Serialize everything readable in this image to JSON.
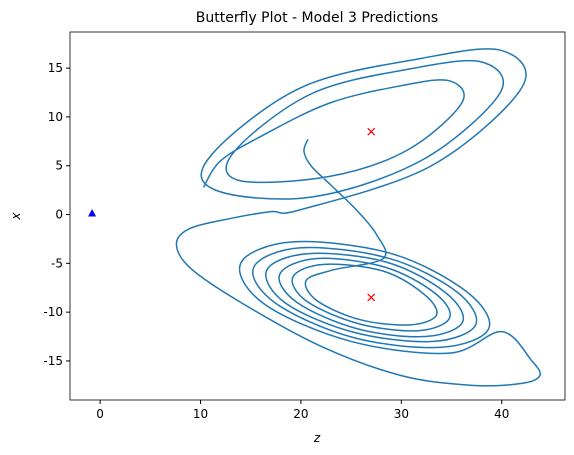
{
  "chart_data": {
    "type": "line",
    "title": "Butterfly Plot - Model 3 Predictions",
    "x_label": "z",
    "y_label": "x",
    "xlim": [
      -3.0,
      46.3
    ],
    "ylim": [
      -19.0,
      18.7
    ],
    "xticks": [
      0,
      10,
      20,
      30,
      40
    ],
    "yticks": [
      -15,
      -10,
      -5,
      0,
      5,
      10,
      15
    ],
    "series": [
      {
        "color": "#1f77b4",
        "mode": "line",
        "x": [
          20.7,
          20.3,
          21,
          23,
          25.5,
          27.5,
          28.2,
          23.1,
          20.5,
          21.7,
          26,
          30.9,
          33.5,
          32.3,
          28.2,
          22.3,
          19.2,
          20.6,
          25.8,
          31.7,
          34.8,
          33.4,
          28.4,
          21.6,
          17.9,
          19.6,
          25.6,
          32.4,
          36.1,
          34.4,
          28.6,
          20.8,
          16.6,
          18.5,
          25.4,
          33.2,
          37.4,
          35.5,
          28.8,
          20,
          15.3,
          17.5,
          25.2,
          34,
          38.7,
          36.5,
          29,
          19.2,
          14,
          16.4,
          25,
          34.8,
          40,
          43,
          43.8,
          42,
          37,
          30,
          22,
          14,
          9,
          7.6,
          9,
          13,
          17,
          20,
          33,
          42,
          40,
          32,
          20,
          11,
          11.5,
          21.1,
          32.1,
          39.8,
          38.1,
          31.3,
          21.1,
          13.4,
          13.8,
          22.8,
          30.6,
          36,
          34.8,
          30,
          22.8,
          16,
          12,
          10.3
        ],
        "values": [
          7.7,
          6.5,
          5,
          3,
          0.5,
          -2,
          -4.5,
          -5.7,
          -6.8,
          -8.9,
          -10.8,
          -11.3,
          -10.3,
          -8.2,
          -5.8,
          -5.1,
          -6.4,
          -8.9,
          -11.2,
          -11.9,
          -10.6,
          -8.1,
          -5.4,
          -4.5,
          -6.1,
          -9.0,
          -11.7,
          -12.5,
          -11.0,
          -8.0,
          -4.9,
          -4.0,
          -5.7,
          -9.1,
          -12.1,
          -13.0,
          -11.3,
          -7.9,
          -4.5,
          -3.4,
          -5.4,
          -9.1,
          -12.6,
          -13.6,
          -11.7,
          -7.9,
          -4,
          -2.8,
          -5,
          -9.2,
          -13,
          -14.2,
          -12,
          -15,
          -16.5,
          -17.3,
          -17.5,
          -16.5,
          -13.5,
          -9,
          -5.5,
          -3,
          -1.4,
          -0.4,
          0.3,
          0.5,
          5,
          13,
          16.8,
          16,
          13,
          6,
          2.5,
          1.8,
          5.6,
          12.4,
          15.6,
          15,
          12.4,
          6.5,
          3.5,
          3.9,
          6.6,
          11.4,
          13.7,
          13.2,
          11.4,
          8,
          5.5,
          2.8
        ]
      },
      {
        "color": "#0000ff",
        "mode": "triangle",
        "x": [
          -0.8
        ],
        "values": [
          0.1
        ]
      },
      {
        "color": "#ff0000",
        "mode": "cross",
        "x": [
          27,
          27
        ],
        "values": [
          8.49,
          -8.49
        ]
      }
    ]
  }
}
